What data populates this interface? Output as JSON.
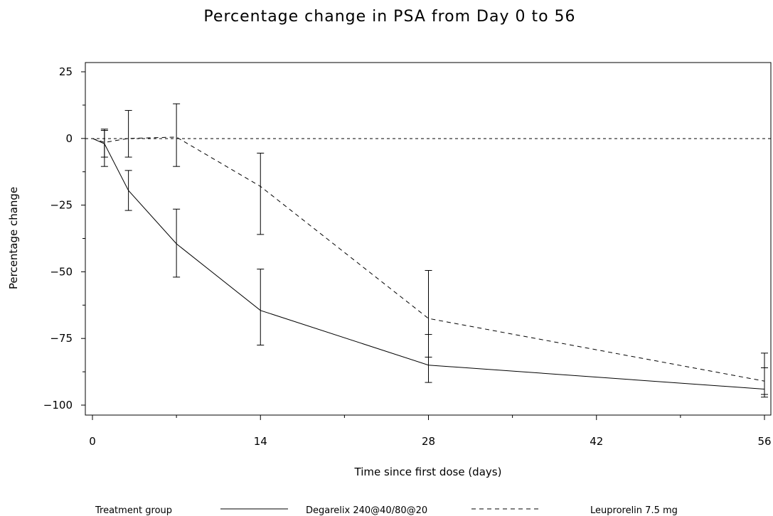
{
  "chart_data": {
    "type": "line",
    "title": "Percentage change in PSA from Day 0 to 56",
    "xlabel": "Time since first dose (days)",
    "ylabel": "Percentage change",
    "xlim": [
      0,
      56
    ],
    "ylim": [
      -100,
      25
    ],
    "xticks": [
      "0",
      "14",
      "28",
      "42",
      "56"
    ],
    "yticks": [
      "25",
      "0",
      "−25",
      "−50",
      "−75",
      "−100"
    ],
    "reference_line_y": 0,
    "legend": {
      "title": "Treatment group",
      "placement": "bottom"
    },
    "series": [
      {
        "name": "Degarelix 240@40/80@20",
        "line_style": "solid",
        "points": [
          {
            "x": 0,
            "y": 0,
            "lo": null,
            "hi": null
          },
          {
            "x": 1,
            "y": -2,
            "lo": -7,
            "hi": 3
          },
          {
            "x": 3,
            "y": -19.5,
            "lo": -27,
            "hi": -12
          },
          {
            "x": 7,
            "y": -39.5,
            "lo": -52,
            "hi": -26.5
          },
          {
            "x": 14,
            "y": -64.5,
            "lo": -77.5,
            "hi": -49
          },
          {
            "x": 28,
            "y": -85,
            "lo": -91.5,
            "hi": -73.5
          },
          {
            "x": 56,
            "y": -94,
            "lo": -97,
            "hi": -86
          }
        ]
      },
      {
        "name": "Leuprorelin 7.5 mg",
        "line_style": "dashed",
        "points": [
          {
            "x": 0,
            "y": 0,
            "lo": null,
            "hi": null
          },
          {
            "x": 1,
            "y": -1.5,
            "lo": -10.5,
            "hi": 3.5
          },
          {
            "x": 3,
            "y": 0,
            "lo": -7,
            "hi": 10.5
          },
          {
            "x": 7,
            "y": 0.5,
            "lo": -10.5,
            "hi": 13
          },
          {
            "x": 14,
            "y": -18,
            "lo": -36,
            "hi": -5.5
          },
          {
            "x": 28,
            "y": -67.5,
            "lo": -82,
            "hi": -49.5
          },
          {
            "x": 56,
            "y": -91,
            "lo": -96,
            "hi": -80.5
          }
        ]
      }
    ]
  }
}
